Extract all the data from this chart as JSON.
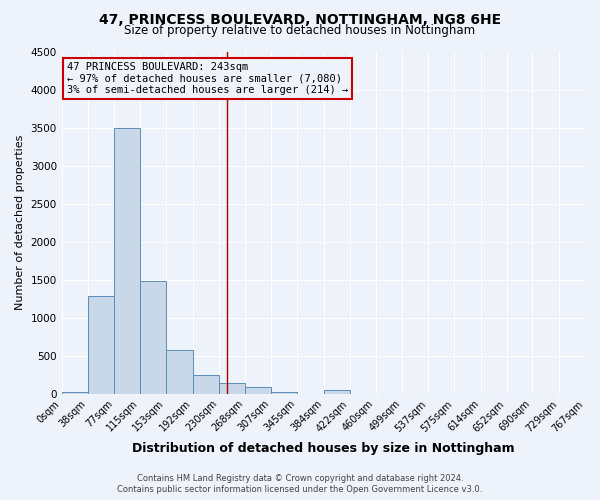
{
  "title": "47, PRINCESS BOULEVARD, NOTTINGHAM, NG8 6HE",
  "subtitle": "Size of property relative to detached houses in Nottingham",
  "xlabel": "Distribution of detached houses by size in Nottingham",
  "ylabel": "Number of detached properties",
  "bin_labels": [
    "0sqm",
    "38sqm",
    "77sqm",
    "115sqm",
    "153sqm",
    "192sqm",
    "230sqm",
    "268sqm",
    "307sqm",
    "345sqm",
    "384sqm",
    "422sqm",
    "460sqm",
    "499sqm",
    "537sqm",
    "575sqm",
    "614sqm",
    "652sqm",
    "690sqm",
    "729sqm",
    "767sqm"
  ],
  "bin_edges": [
    0,
    38,
    77,
    115,
    153,
    192,
    230,
    268,
    307,
    345,
    384,
    422,
    460,
    499,
    537,
    575,
    614,
    652,
    690,
    729,
    767
  ],
  "bar_values": [
    30,
    1280,
    3500,
    1480,
    580,
    250,
    140,
    90,
    30,
    0,
    50,
    0,
    0,
    0,
    0,
    0,
    0,
    0,
    0,
    0
  ],
  "bar_color": "#c8d8e8",
  "bar_edge_color": "#5b8db8",
  "property_size": 243,
  "vline_color": "#aa0000",
  "ylim": [
    0,
    4500
  ],
  "yticks": [
    0,
    500,
    1000,
    1500,
    2000,
    2500,
    3000,
    3500,
    4000,
    4500
  ],
  "annotation_line1": "47 PRINCESS BOULEVARD: 243sqm",
  "annotation_line2": "← 97% of detached houses are smaller (7,080)",
  "annotation_line3": "3% of semi-detached houses are larger (214) →",
  "annotation_box_edgecolor": "#cc0000",
  "footer_line1": "Contains HM Land Registry data © Crown copyright and database right 2024.",
  "footer_line2": "Contains public sector information licensed under the Open Government Licence v3.0.",
  "background_color": "#eef2fb",
  "grid_color": "#ffffff",
  "title_fontsize": 10,
  "subtitle_fontsize": 8.5,
  "xlabel_fontsize": 9,
  "ylabel_fontsize": 8,
  "tick_fontsize": 7,
  "footer_fontsize": 6,
  "annotation_fontsize": 7.5
}
